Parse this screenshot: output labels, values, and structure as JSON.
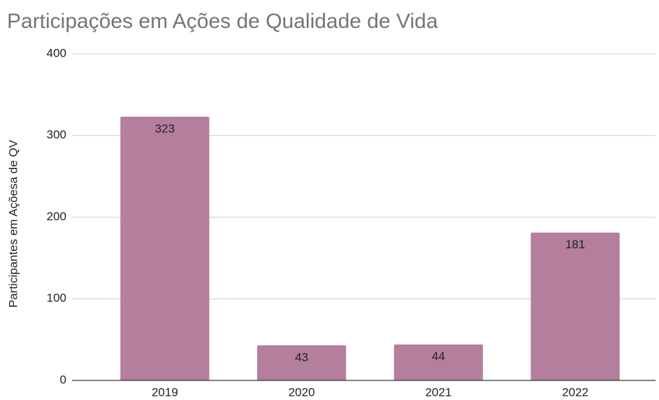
{
  "chart_data": {
    "type": "bar",
    "title": "Participações em Ações de Qualidade de Vida",
    "y_label": "Participantes em Açõesa de QV",
    "categories": [
      "2019",
      "2020",
      "2021",
      "2022"
    ],
    "values": [
      323,
      43,
      44,
      181
    ],
    "color": "#b57e9d",
    "ylim": [
      0,
      400
    ],
    "yticks": [
      0,
      100,
      200,
      300,
      400
    ],
    "grid": true
  }
}
